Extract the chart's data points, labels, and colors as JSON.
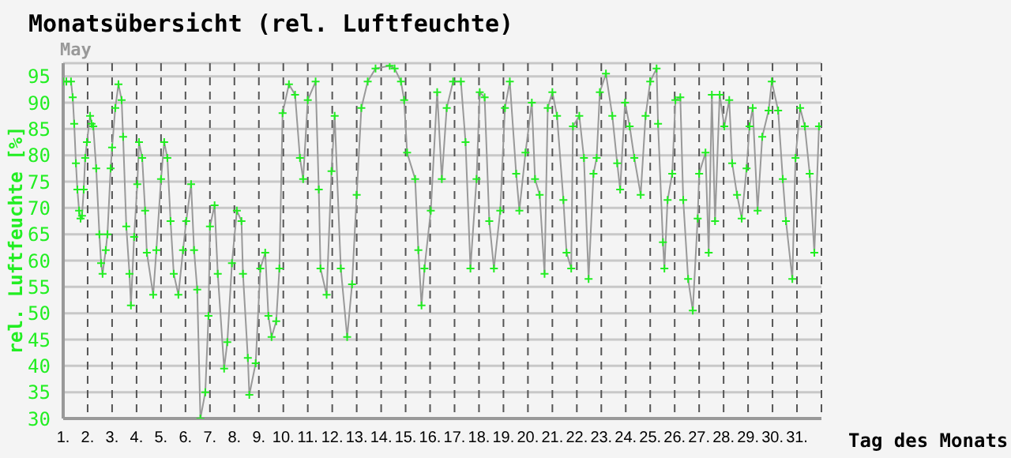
{
  "chart_data": {
    "type": "line",
    "title": "Monatsübersicht (rel. Luftfeuchte)",
    "annotations": [
      "May"
    ],
    "xlabel": "Tag des Monats",
    "ylabel": "rel. Luftfeuchte [%]",
    "xlim": [
      1,
      32
    ],
    "xticks": [
      {
        "value": 1,
        "label": "1."
      },
      {
        "value": 2,
        "label": "2."
      },
      {
        "value": 3,
        "label": "3."
      },
      {
        "value": 4,
        "label": "4."
      },
      {
        "value": 5,
        "label": "5."
      },
      {
        "value": 6,
        "label": "6."
      },
      {
        "value": 7,
        "label": "7."
      },
      {
        "value": 8,
        "label": "8."
      },
      {
        "value": 9,
        "label": "9."
      },
      {
        "value": 10,
        "label": "10."
      },
      {
        "value": 11,
        "label": "11."
      },
      {
        "value": 12,
        "label": "12."
      },
      {
        "value": 13,
        "label": "13."
      },
      {
        "value": 14,
        "label": "14."
      },
      {
        "value": 15,
        "label": "15."
      },
      {
        "value": 16,
        "label": "16."
      },
      {
        "value": 17,
        "label": "17."
      },
      {
        "value": 18,
        "label": "18."
      },
      {
        "value": 19,
        "label": "19."
      },
      {
        "value": 20,
        "label": "20."
      },
      {
        "value": 21,
        "label": "21."
      },
      {
        "value": 22,
        "label": "22."
      },
      {
        "value": 23,
        "label": "23."
      },
      {
        "value": 24,
        "label": "24."
      },
      {
        "value": 25,
        "label": "25."
      },
      {
        "value": 26,
        "label": "26."
      },
      {
        "value": 27,
        "label": "27."
      },
      {
        "value": 28,
        "label": "28."
      },
      {
        "value": 29,
        "label": "29."
      },
      {
        "value": 30,
        "label": "30."
      },
      {
        "value": 31,
        "label": "31."
      }
    ],
    "ylim": [
      30,
      97.5
    ],
    "yticks": [
      30,
      35,
      40,
      45,
      50,
      55,
      60,
      65,
      70,
      75,
      80,
      85,
      90,
      95
    ],
    "grid": true,
    "marker": "cross",
    "line_style": "solid",
    "series": [
      {
        "color": "#999999",
        "x": [
          1.0,
          1.13,
          1.32,
          1.39,
          1.45,
          1.52,
          1.58,
          1.65,
          1.71,
          1.77,
          1.84,
          1.9,
          1.97,
          2.1,
          2.16,
          2.23,
          2.35,
          2.48,
          2.55,
          2.61,
          2.74,
          2.81,
          2.94,
          3.0,
          3.13,
          3.26,
          3.39,
          3.45,
          3.58,
          3.71,
          3.77,
          3.9,
          4.03,
          4.1,
          4.23,
          4.35,
          4.42,
          4.68,
          4.81,
          5.0,
          5.13,
          5.26,
          5.39,
          5.52,
          5.71,
          5.9,
          6.03,
          6.23,
          6.35,
          6.48,
          6.61,
          6.81,
          6.94,
          7.0,
          7.19,
          7.32,
          7.58,
          7.71,
          7.9,
          8.1,
          8.29,
          8.35,
          8.55,
          8.61,
          8.87,
          9.06,
          9.26,
          9.39,
          9.52,
          9.71,
          9.84,
          9.97,
          10.23,
          10.48,
          10.68,
          10.81,
          11.0,
          11.32,
          11.45,
          11.52,
          11.77,
          11.97,
          12.1,
          12.35,
          12.61,
          12.81,
          13.0,
          13.19,
          13.45,
          13.77,
          14.35,
          14.55,
          14.81,
          14.94,
          15.06,
          15.39,
          15.52,
          15.65,
          15.77,
          16.03,
          16.29,
          16.48,
          16.68,
          16.94,
          17.26,
          17.45,
          17.65,
          17.9,
          18.03,
          18.23,
          18.42,
          18.61,
          18.87,
          19.06,
          19.26,
          19.52,
          19.65,
          19.9,
          20.16,
          20.29,
          20.48,
          20.68,
          20.81,
          21.0,
          21.19,
          21.45,
          21.58,
          21.77,
          21.84,
          22.1,
          22.29,
          22.48,
          22.68,
          22.81,
          22.94,
          23.19,
          23.45,
          23.65,
          23.77,
          23.97,
          24.16,
          24.35,
          24.61,
          24.81,
          25.0,
          25.26,
          25.32,
          25.52,
          25.58,
          25.71,
          25.9,
          26.03,
          26.23,
          26.35,
          26.55,
          26.74,
          26.94,
          27.0,
          27.26,
          27.39,
          27.52,
          27.65,
          27.84,
          28.03,
          28.23,
          28.35,
          28.55,
          28.74,
          28.94,
          29.06,
          29.19,
          29.39,
          29.58,
          29.84,
          29.97,
          30.23,
          30.42,
          30.55,
          30.81,
          30.94,
          31.13,
          31.32,
          31.52,
          31.71,
          31.9
        ],
        "values": [
          94,
          94,
          94,
          91,
          86,
          78.5,
          73.5,
          69.5,
          68,
          68.5,
          73.5,
          79.5,
          82.5,
          87.5,
          86,
          85.5,
          77.5,
          65,
          59.5,
          57.5,
          62,
          65,
          77.5,
          81.5,
          89,
          93.5,
          90.5,
          83.5,
          66.5,
          57.5,
          51.5,
          64.5,
          74.5,
          82.5,
          79.5,
          69.5,
          61.5,
          53.5,
          62,
          75.5,
          82.5,
          79.5,
          67.5,
          57.5,
          53.5,
          62,
          67.5,
          74.5,
          62,
          54.5,
          30,
          35,
          49.5,
          66.5,
          70.5,
          57.5,
          39.5,
          44.5,
          59.5,
          69.5,
          67.5,
          57.5,
          41.5,
          34.5,
          40.5,
          58.5,
          61.5,
          49.5,
          45.5,
          48.5,
          58.5,
          88,
          93.5,
          91.5,
          79.5,
          75.5,
          90.5,
          94,
          73.5,
          58.5,
          53.5,
          77,
          87.5,
          58.5,
          45.5,
          55.5,
          72.5,
          89,
          94,
          96.5,
          97,
          96.5,
          94,
          90.5,
          80.5,
          75.5,
          62,
          51.5,
          58.5,
          69.5,
          92,
          75.5,
          89,
          94,
          94,
          82.5,
          58.5,
          75.5,
          92,
          91,
          67.5,
          58.5,
          69.5,
          89,
          94,
          76.5,
          69.5,
          80.5,
          90,
          75.5,
          72.5,
          57.5,
          89,
          92,
          87.5,
          71.5,
          61.5,
          58.5,
          85.5,
          87.5,
          79.5,
          56.5,
          76.5,
          79.5,
          92,
          95.5,
          87.5,
          78.5,
          73.5,
          90,
          85.5,
          79.5,
          72.5,
          87.5,
          94,
          96.5,
          86,
          63.5,
          58.5,
          71.5,
          76.5,
          90.5,
          91,
          71.5,
          56.5,
          50.5,
          68,
          76.5,
          80.5,
          61.5,
          91.5,
          67.5,
          91.5,
          85.5,
          90.5,
          78.5,
          72.5,
          68,
          77.5,
          85.5,
          89,
          69.5,
          83.5,
          88.5,
          94,
          88.5,
          75.5,
          67.5,
          56.5,
          79.5,
          89,
          85.5,
          76.5,
          61.5,
          85.5
        ]
      }
    ]
  }
}
